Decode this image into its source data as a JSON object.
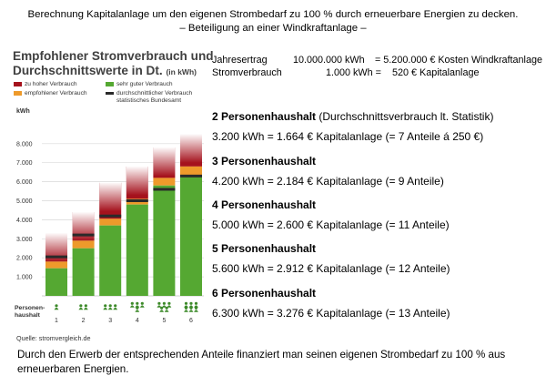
{
  "header": {
    "line1": "Berechnung Kapitalanlage um den eigenen Strombedarf zu 100 % durch erneuerbare Energien zu decken.",
    "line2": "– Beteiligung an einer Windkraftanlage –"
  },
  "chart_heading": {
    "line1": "Empfohlener Stromverbrauch und",
    "line2": "Durchschnittswerte in Dt.",
    "unit_note": "(in kWh)"
  },
  "legend": {
    "high": "zu hoher Verbrauch",
    "recommended": "empfohlener Verbrauch",
    "very_good": "sehr guter Verbrauch",
    "average_line1": "durchschnittlicher Verbrauch",
    "average_line2": "statistisches Bundesamt"
  },
  "source": "Quelle: stromvergleich.de",
  "colors": {
    "high": "#a5121d",
    "recommended": "#ee9a2b",
    "very_good": "#55a832",
    "average": "#2a2a2a"
  },
  "chart_data": {
    "type": "bar",
    "ylabel": "kWh",
    "ylim": [
      0,
      8600
    ],
    "yticks": [
      1000,
      2000,
      3000,
      4000,
      5000,
      6000,
      7000,
      8000
    ],
    "ytick_labels": [
      "1.000",
      "2.000",
      "3.000",
      "4.000",
      "5.000",
      "6.000",
      "7.000",
      "8.000"
    ],
    "xlabel": "Personen-haushalt",
    "xlabel_line1": "Personen-",
    "xlabel_line2": "haushalt",
    "categories": [
      "1",
      "2",
      "3",
      "4",
      "5",
      "6"
    ],
    "series": [
      {
        "name": "sehr guter Verbrauch",
        "values": [
          1450,
          2500,
          3700,
          4800,
          5800,
          6300
        ]
      },
      {
        "name": "empfohlener Verbrauch",
        "values": [
          1800,
          2900,
          4050,
          5100,
          6200,
          6800
        ]
      },
      {
        "name": "zu hoher Verbrauch",
        "values": [
          3300,
          4400,
          5950,
          6800,
          7800,
          8500
        ]
      },
      {
        "name": "durchschnittlicher Verbrauch statistisches Bundesamt",
        "values": [
          2050,
          3200,
          4200,
          5000,
          5600,
          6300
        ]
      }
    ]
  },
  "info": {
    "row1": {
      "label": "Jahresertrag",
      "mid": "10.000.000 kWh",
      "rest": "= 5.200.000 € Kosten Windkraftanlage"
    },
    "row2": {
      "label": "Stromverbrauch",
      "mid": "1.000 kWh =",
      "rest": "520 € Kapitalanlage"
    },
    "households": [
      {
        "title": "2 Personenhaushalt",
        "note": "(Durchschnittsverbrauch lt. Statistik)",
        "line": "3.200 kWh = 1.664 € Kapitalanlage (= 7 Anteile á 250 €)"
      },
      {
        "title": "3 Personenhaushalt",
        "note": "",
        "line": "4.200 kWh = 2.184 € Kapitalanlage (= 9 Anteile)"
      },
      {
        "title": "4 Personenhaushalt",
        "note": "",
        "line": "5.000 kWh = 2.600 € Kapitalanlage (= 11 Anteile)"
      },
      {
        "title": "5 Personenhaushalt",
        "note": "",
        "line": "5.600 kWh = 2.912 € Kapitalanlage (= 12 Anteile)"
      },
      {
        "title": "6 Personenhaushalt",
        "note": "",
        "line": "6.300 kWh = 3.276 € Kapitalanlage (= 13 Anteile)"
      }
    ]
  },
  "footer": "Durch den Erwerb der entsprechenden Anteile finanziert man seinen eigenen Strombedarf zu 100 % aus erneuerbaren Energien."
}
